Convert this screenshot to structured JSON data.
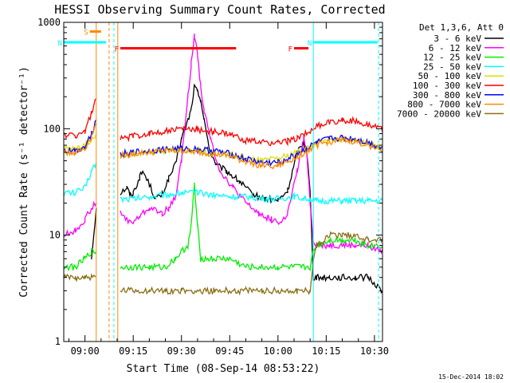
{
  "chart_data": {
    "type": "line",
    "title": "HESSI Observing Summary Count Rates, Corrected",
    "xlabel": "Start Time (08-Sep-14 08:53:22)",
    "ylabel": "Corrected Count Rate (s⁻¹ detector⁻¹)",
    "yscale": "log",
    "ylim": [
      1,
      1000
    ],
    "xlim_minutes_from_0900": [
      -6.6,
      92.5
    ],
    "x_ticks": [
      {
        "label": "09:00",
        "t": 0
      },
      {
        "label": "09:15",
        "t": 15
      },
      {
        "label": "09:30",
        "t": 30
      },
      {
        "label": "09:45",
        "t": 45
      },
      {
        "label": "10:00",
        "t": 60
      },
      {
        "label": "10:15",
        "t": 75
      },
      {
        "label": "10:30",
        "t": 90
      }
    ],
    "y_ticks": [
      {
        "label": "1",
        "v": 1
      },
      {
        "label": "10",
        "v": 10
      },
      {
        "label": "100",
        "v": 100
      },
      {
        "label": "1000",
        "v": 1000
      }
    ],
    "legend_header": "Det 1,3,6, Att 0",
    "legend_position": "right",
    "series": [
      {
        "name": "3 - 6 keV",
        "color": "#000000",
        "x": [
          -6.6,
          0,
          2,
          3.5,
          9,
          10,
          11,
          13,
          14,
          15,
          17,
          18,
          20,
          22,
          24,
          26,
          28,
          30,
          32,
          33,
          34,
          35,
          36,
          37,
          39,
          41,
          44,
          48,
          52,
          56,
          60,
          63,
          66,
          68,
          69,
          70,
          71,
          72,
          74,
          76,
          80,
          84,
          88,
          92.5
        ],
        "y": [
          null,
          null,
          6,
          18,
          null,
          null,
          25,
          28,
          24,
          25,
          35,
          40,
          30,
          22,
          24,
          34,
          45,
          80,
          120,
          150,
          250,
          220,
          190,
          120,
          60,
          45,
          40,
          32,
          24,
          22,
          21,
          26,
          60,
          75,
          60,
          25,
          4,
          4,
          4,
          4,
          4,
          4,
          4,
          3
        ]
      },
      {
        "name": "6 - 12 keV",
        "color": "#ff00ff",
        "x": [
          -6.6,
          -3,
          0,
          2,
          3.5,
          9,
          10,
          11,
          13,
          15,
          17,
          20,
          24,
          26,
          28,
          30,
          32,
          33,
          34,
          35,
          36,
          37,
          39,
          42,
          46,
          50,
          54,
          58,
          61,
          63,
          66,
          68,
          69,
          70,
          71,
          72,
          76,
          80,
          84,
          88,
          92.5
        ],
        "y": [
          10,
          11,
          14,
          18,
          20,
          null,
          null,
          16,
          14,
          13,
          15,
          18,
          16,
          18,
          22,
          50,
          200,
          400,
          750,
          500,
          250,
          150,
          80,
          40,
          28,
          20,
          16,
          14,
          13,
          16,
          40,
          80,
          60,
          20,
          9,
          8,
          8,
          8,
          8,
          8,
          7
        ]
      },
      {
        "name": "12 - 25 keV",
        "color": "#00ee00",
        "x": [
          -6.6,
          -3,
          0,
          2,
          3.5,
          9,
          10,
          11,
          15,
          20,
          25,
          28,
          30,
          32,
          33,
          34,
          35,
          36,
          40,
          45,
          50,
          55,
          60,
          65,
          68,
          70,
          71,
          72,
          76,
          80,
          84,
          88,
          92.5
        ],
        "y": [
          5,
          5,
          6,
          7,
          7,
          null,
          null,
          5,
          5,
          5,
          5,
          6,
          7,
          8,
          12,
          30,
          12,
          6,
          6,
          6,
          5,
          5,
          5,
          5,
          5,
          5,
          7,
          8,
          9,
          9,
          9,
          8,
          8
        ]
      },
      {
        "name": "25 - 50 keV",
        "color": "#00ffff",
        "x": [
          -6.6,
          -3,
          0,
          2,
          3.5,
          9,
          10,
          11,
          15,
          20,
          25,
          30,
          35,
          40,
          45,
          50,
          55,
          60,
          65,
          68,
          70,
          71,
          72,
          76,
          80,
          84,
          88,
          92.5
        ],
        "y": [
          25,
          25,
          28,
          40,
          48,
          null,
          null,
          22,
          22,
          23,
          24,
          25,
          25,
          24,
          23,
          23,
          22,
          22,
          23,
          22,
          22,
          21,
          21,
          21,
          21,
          21,
          21,
          21
        ]
      },
      {
        "name": "50 - 100 keV",
        "color": "#dddd00",
        "x": [
          -6.6,
          -3,
          0,
          2,
          3.5,
          9,
          10,
          11,
          15,
          20,
          25,
          30,
          35,
          40,
          45,
          50,
          55,
          60,
          63,
          66,
          70,
          72,
          76,
          80,
          84,
          88,
          92.5
        ],
        "y": [
          65,
          65,
          70,
          80,
          90,
          null,
          null,
          56,
          58,
          60,
          62,
          63,
          62,
          60,
          57,
          52,
          50,
          52,
          56,
          60,
          68,
          72,
          78,
          80,
          78,
          72,
          66
        ]
      },
      {
        "name": "100 - 300 keV",
        "color": "#ff0000",
        "x": [
          -6.6,
          -3,
          0,
          2,
          3.5,
          9,
          10,
          11,
          15,
          20,
          25,
          30,
          35,
          40,
          45,
          50,
          55,
          60,
          63,
          66,
          70,
          72,
          76,
          80,
          84,
          88,
          92.5
        ],
        "y": [
          88,
          86,
          95,
          140,
          190,
          null,
          null,
          80,
          85,
          90,
          95,
          100,
          98,
          94,
          88,
          78,
          74,
          74,
          76,
          82,
          95,
          105,
          115,
          120,
          118,
          110,
          98
        ]
      },
      {
        "name": "300 - 800 keV",
        "color": "#0000ff",
        "x": [
          -6.6,
          -3,
          0,
          2,
          3.5,
          9,
          10,
          11,
          15,
          20,
          25,
          30,
          35,
          40,
          45,
          50,
          55,
          60,
          63,
          66,
          70,
          72,
          76,
          80,
          84,
          88,
          92.5
        ],
        "y": [
          62,
          62,
          68,
          90,
          120,
          null,
          null,
          58,
          60,
          62,
          64,
          65,
          64,
          62,
          58,
          52,
          48,
          48,
          52,
          58,
          68,
          74,
          80,
          82,
          80,
          74,
          66
        ]
      },
      {
        "name": "800 - 7000 keV",
        "color": "#ff8800",
        "x": [
          -6.6,
          -3,
          0,
          2,
          3.5,
          9,
          10,
          11,
          15,
          20,
          25,
          30,
          35,
          40,
          45,
          50,
          55,
          60,
          63,
          66,
          70,
          72,
          76,
          80,
          84,
          88,
          92.5
        ],
        "y": [
          60,
          60,
          65,
          85,
          110,
          null,
          null,
          56,
          58,
          60,
          62,
          62,
          60,
          58,
          55,
          49,
          45,
          45,
          49,
          55,
          64,
          70,
          76,
          78,
          76,
          70,
          63
        ]
      },
      {
        "name": "7000 - 20000 keV",
        "color": "#8b6e14",
        "x": [
          -6.6,
          -3,
          0,
          2,
          3.5,
          9,
          10,
          11,
          15,
          20,
          25,
          30,
          35,
          40,
          45,
          50,
          55,
          60,
          63,
          66,
          70,
          71,
          72,
          76,
          80,
          84,
          88,
          92.5
        ],
        "y": [
          4,
          4,
          4,
          4,
          4,
          null,
          null,
          3,
          3,
          3,
          3,
          3,
          3,
          3,
          3,
          3,
          3,
          3,
          3,
          3,
          3,
          6,
          8,
          10,
          10,
          10,
          9,
          9
        ]
      }
    ],
    "spans": [
      {
        "label": "S",
        "color": "#ff8800",
        "t_start": 1.5,
        "t_end": 5,
        "level": 820
      },
      {
        "label": "N",
        "color": "#00ffff",
        "t_start": -6.6,
        "t_end": 6.5,
        "level": 650
      },
      {
        "label": "N",
        "color": "#00ffff",
        "t_start": 71,
        "t_end": 91,
        "level": 650
      },
      {
        "label": "F",
        "color": "#ff0000",
        "t_start": 11,
        "t_end": 47,
        "level": 570
      },
      {
        "label": "F",
        "color": "#ff0000",
        "t_start": 65,
        "t_end": 69.5,
        "level": 570
      }
    ],
    "vlines": [
      {
        "t": -6.6,
        "color": "#00ffff",
        "dashed": false
      },
      {
        "t": 3.5,
        "color": "#ff8800",
        "dashed": false
      },
      {
        "t": 7.5,
        "color": "#ff8800",
        "dashed": true
      },
      {
        "t": 9,
        "color": "#00ffff",
        "dashed": true
      },
      {
        "t": 10.2,
        "color": "#ff8800",
        "dashed": false
      },
      {
        "t": 71,
        "color": "#00ffff",
        "dashed": false
      },
      {
        "t": 91.3,
        "color": "#00ffff",
        "dashed": true
      }
    ],
    "footer_date": "15-Dec-2014 18:02"
  }
}
